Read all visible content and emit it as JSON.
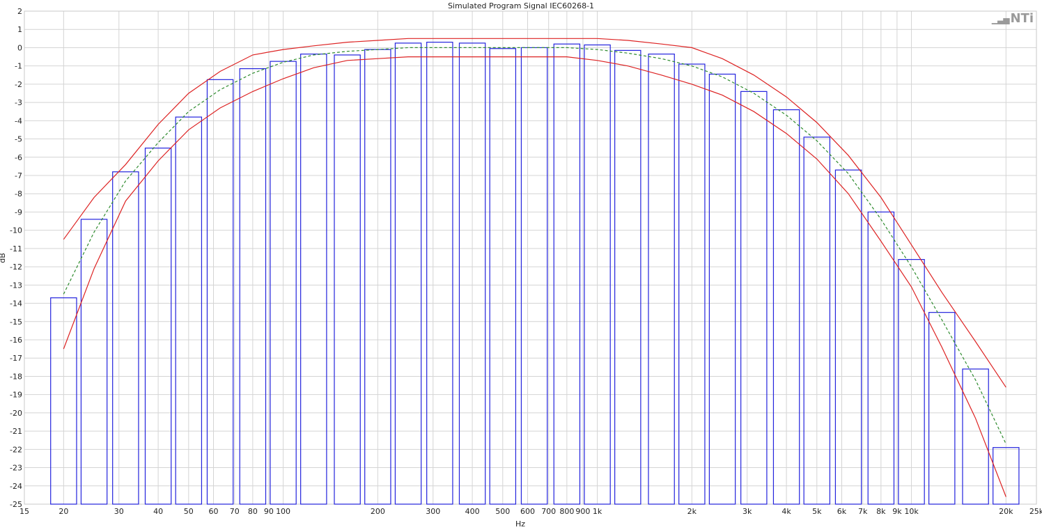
{
  "logo_text": "NTi",
  "chart_data": {
    "type": "bar",
    "title": "Simulated Program Signal IEC60268-1",
    "xlabel": "Hz",
    "ylabel": "dB",
    "x_scale": "log",
    "xlim": [
      15,
      25000
    ],
    "ylim": [
      -25,
      2
    ],
    "grid": true,
    "x_ticks": [
      15,
      20,
      30,
      40,
      50,
      60,
      70,
      80,
      90,
      100,
      200,
      300,
      400,
      500,
      600,
      700,
      800,
      900,
      1000,
      2000,
      3000,
      4000,
      5000,
      6000,
      7000,
      8000,
      9000,
      10000,
      20000,
      25000
    ],
    "x_tick_labels": [
      "15",
      "20",
      "30",
      "40",
      "50",
      "60",
      "70",
      "80",
      "90",
      "100",
      "200",
      "300",
      "400",
      "500",
      "600",
      "700",
      "800",
      "900",
      "1k",
      "2k",
      "3k",
      "4k",
      "5k",
      "6k",
      "7k",
      "8k",
      "9k",
      "10k",
      "20k",
      "25k"
    ],
    "y_ticks": [
      2,
      1,
      0,
      -1,
      -2,
      -3,
      -4,
      -5,
      -6,
      -7,
      -8,
      -9,
      -10,
      -11,
      -12,
      -13,
      -14,
      -15,
      -16,
      -17,
      -18,
      -19,
      -20,
      -21,
      -22,
      -23,
      -24,
      -25
    ],
    "bands": {
      "name": "third-octave levels",
      "color": "#2222dd",
      "centers": [
        20,
        25,
        31.5,
        40,
        50,
        63,
        80,
        100,
        125,
        160,
        200,
        250,
        315,
        400,
        500,
        630,
        800,
        1000,
        1250,
        1600,
        2000,
        2500,
        3150,
        4000,
        5000,
        6300,
        8000,
        10000,
        12500,
        16000,
        20000
      ],
      "values": [
        -13.7,
        -9.4,
        -6.8,
        -5.5,
        -3.8,
        -1.75,
        -1.15,
        -0.75,
        -0.35,
        -0.4,
        -0.1,
        0.25,
        0.3,
        0.25,
        -0.05,
        0.0,
        0.2,
        0.15,
        -0.15,
        -0.35,
        -0.9,
        -1.45,
        -2.4,
        -3.4,
        -4.9,
        -6.7,
        -9.0,
        -11.6,
        -14.5,
        -17.6,
        -21.9
      ]
    },
    "lines": [
      {
        "color": "#dd2222",
        "style": "solid",
        "x": [
          20,
          25,
          31.5,
          40,
          50,
          63,
          80,
          100,
          125,
          160,
          200,
          250,
          315,
          400,
          500,
          630,
          800,
          1000,
          1250,
          1600,
          2000,
          2500,
          3150,
          4000,
          5000,
          6300,
          8000,
          10000,
          12500,
          16000,
          20000
        ],
        "y": [
          -10.5,
          -8.2,
          -6.4,
          -4.2,
          -2.5,
          -1.3,
          -0.4,
          -0.1,
          0.1,
          0.3,
          0.4,
          0.5,
          0.5,
          0.5,
          0.5,
          0.5,
          0.5,
          0.5,
          0.4,
          0.2,
          0.0,
          -0.6,
          -1.5,
          -2.7,
          -4.1,
          -5.9,
          -8.2,
          -10.8,
          -13.4,
          -16.1,
          -18.6
        ]
      },
      {
        "color": "#dd2222",
        "style": "solid",
        "x": [
          20,
          25,
          31.5,
          40,
          50,
          63,
          80,
          100,
          125,
          160,
          200,
          250,
          315,
          400,
          500,
          630,
          800,
          1000,
          1250,
          1600,
          2000,
          2500,
          3150,
          4000,
          5000,
          6300,
          8000,
          10000,
          12500,
          16000,
          20000
        ],
        "y": [
          -16.5,
          -12.1,
          -8.4,
          -6.2,
          -4.5,
          -3.3,
          -2.4,
          -1.7,
          -1.1,
          -0.7,
          -0.6,
          -0.5,
          -0.5,
          -0.5,
          -0.5,
          -0.5,
          -0.5,
          -0.7,
          -1.0,
          -1.5,
          -2.0,
          -2.6,
          -3.5,
          -4.7,
          -6.1,
          -8.0,
          -10.6,
          -13.1,
          -16.4,
          -20.3,
          -24.6
        ]
      },
      {
        "color": "#2e8b2e",
        "style": "dashed",
        "x": [
          20,
          25,
          31.5,
          40,
          50,
          63,
          80,
          100,
          125,
          160,
          200,
          250,
          315,
          400,
          500,
          630,
          800,
          1000,
          1250,
          1600,
          2000,
          2500,
          3150,
          4000,
          5000,
          6300,
          8000,
          10000,
          12500,
          16000,
          20000
        ],
        "y": [
          -13.5,
          -10.1,
          -7.3,
          -5.2,
          -3.5,
          -2.3,
          -1.4,
          -0.8,
          -0.4,
          -0.2,
          -0.1,
          0.0,
          0.0,
          0.0,
          0.0,
          0.0,
          0.0,
          -0.1,
          -0.3,
          -0.6,
          -1.0,
          -1.6,
          -2.5,
          -3.7,
          -5.1,
          -6.9,
          -9.4,
          -12.0,
          -14.9,
          -18.2,
          -21.7
        ]
      }
    ]
  }
}
